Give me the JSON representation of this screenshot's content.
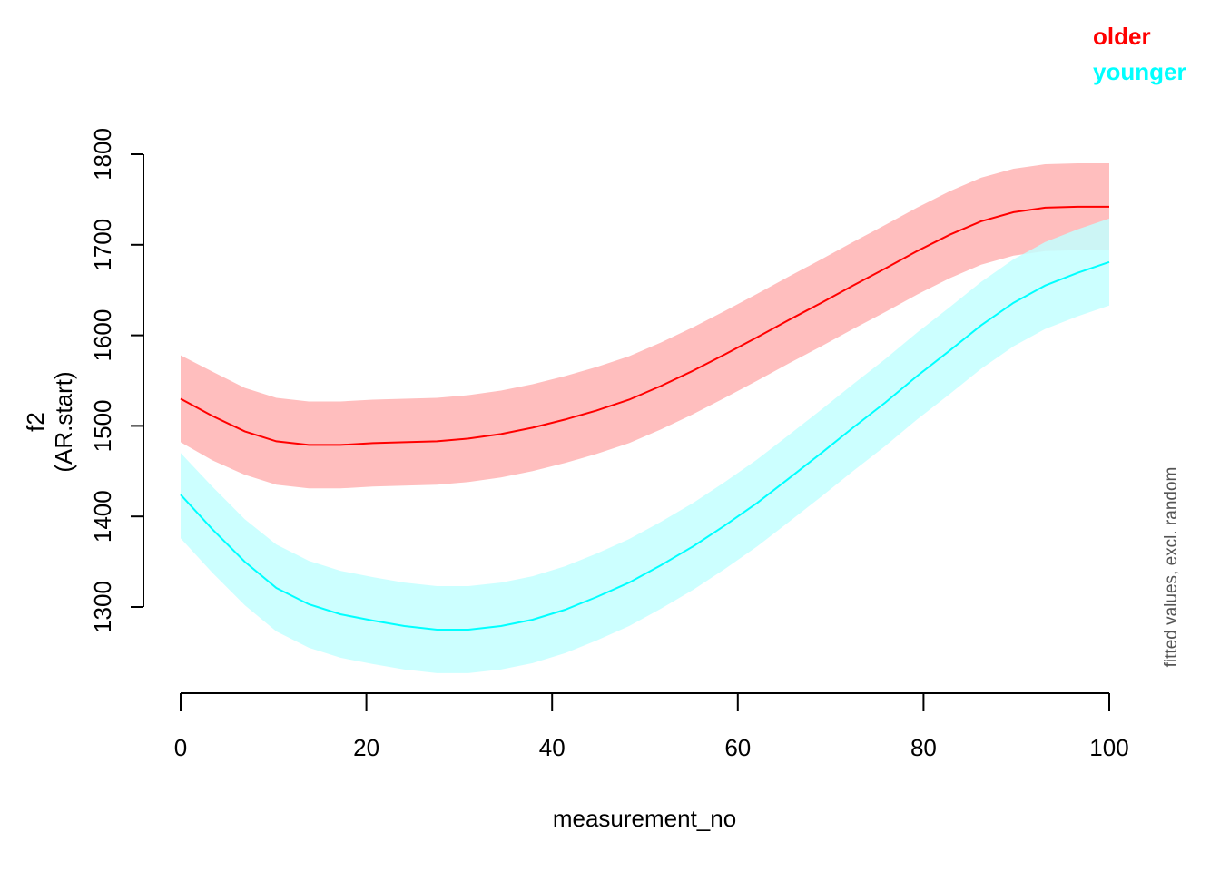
{
  "chart_data": {
    "type": "line",
    "title": "",
    "xlabel": "measurement_no",
    "ylabel": [
      "f2",
      "(AR.start)"
    ],
    "xlim": [
      0,
      100
    ],
    "ylim": [
      1210,
      1800
    ],
    "xticks": [
      0,
      20,
      40,
      60,
      80,
      100
    ],
    "yticks": [
      1300,
      1400,
      1500,
      1600,
      1700,
      1800
    ],
    "grid": false,
    "legend_position": "top-right",
    "note": "fitted values, excl. random",
    "x": [
      0,
      3.4,
      6.9,
      10.3,
      13.8,
      17.2,
      20.7,
      24.1,
      27.6,
      31.0,
      34.5,
      37.9,
      41.4,
      44.8,
      48.3,
      51.7,
      55.2,
      58.6,
      62.1,
      65.5,
      69.0,
      72.4,
      75.9,
      79.3,
      82.8,
      86.2,
      89.7,
      93.1,
      96.6,
      100
    ],
    "series": [
      {
        "name": "older",
        "color": "#FF0000",
        "band_color": "#FFBEBE",
        "values": [
          1530,
          1511,
          1494,
          1483,
          1479,
          1479,
          1481,
          1482,
          1483,
          1486,
          1491,
          1498,
          1507,
          1517,
          1529,
          1544,
          1561,
          1579,
          1598,
          1617,
          1636,
          1655,
          1674,
          1693,
          1711,
          1726,
          1736,
          1741,
          1742,
          1742
        ],
        "upper": [
          1578,
          1560,
          1542,
          1531,
          1527,
          1527,
          1529,
          1530,
          1531,
          1534,
          1539,
          1546,
          1555,
          1565,
          1577,
          1592,
          1609,
          1627,
          1646,
          1665,
          1684,
          1703,
          1722,
          1741,
          1759,
          1774,
          1784,
          1789,
          1790,
          1790
        ],
        "lower": [
          1482,
          1462,
          1446,
          1435,
          1431,
          1431,
          1433,
          1434,
          1435,
          1438,
          1443,
          1450,
          1459,
          1469,
          1481,
          1496,
          1513,
          1531,
          1550,
          1569,
          1588,
          1607,
          1626,
          1645,
          1663,
          1678,
          1688,
          1693,
          1694,
          1694
        ]
      },
      {
        "name": "younger",
        "color": "#00FFFF",
        "band_color": "#C3FFFF",
        "values": [
          1424,
          1386,
          1350,
          1321,
          1303,
          1292,
          1285,
          1279,
          1275,
          1275,
          1279,
          1286,
          1297,
          1311,
          1327,
          1346,
          1367,
          1390,
          1415,
          1442,
          1470,
          1498,
          1526,
          1555,
          1583,
          1611,
          1636,
          1655,
          1669,
          1681
        ],
        "upper": [
          1470,
          1433,
          1397,
          1369,
          1351,
          1340,
          1333,
          1327,
          1323,
          1323,
          1327,
          1334,
          1345,
          1359,
          1375,
          1394,
          1415,
          1438,
          1463,
          1490,
          1518,
          1546,
          1574,
          1603,
          1631,
          1659,
          1684,
          1703,
          1717,
          1729
        ],
        "lower": [
          1376,
          1338,
          1302,
          1273,
          1255,
          1244,
          1237,
          1231,
          1227,
          1227,
          1231,
          1238,
          1249,
          1263,
          1279,
          1298,
          1319,
          1342,
          1367,
          1394,
          1422,
          1450,
          1478,
          1507,
          1535,
          1563,
          1588,
          1607,
          1621,
          1633
        ]
      }
    ]
  }
}
